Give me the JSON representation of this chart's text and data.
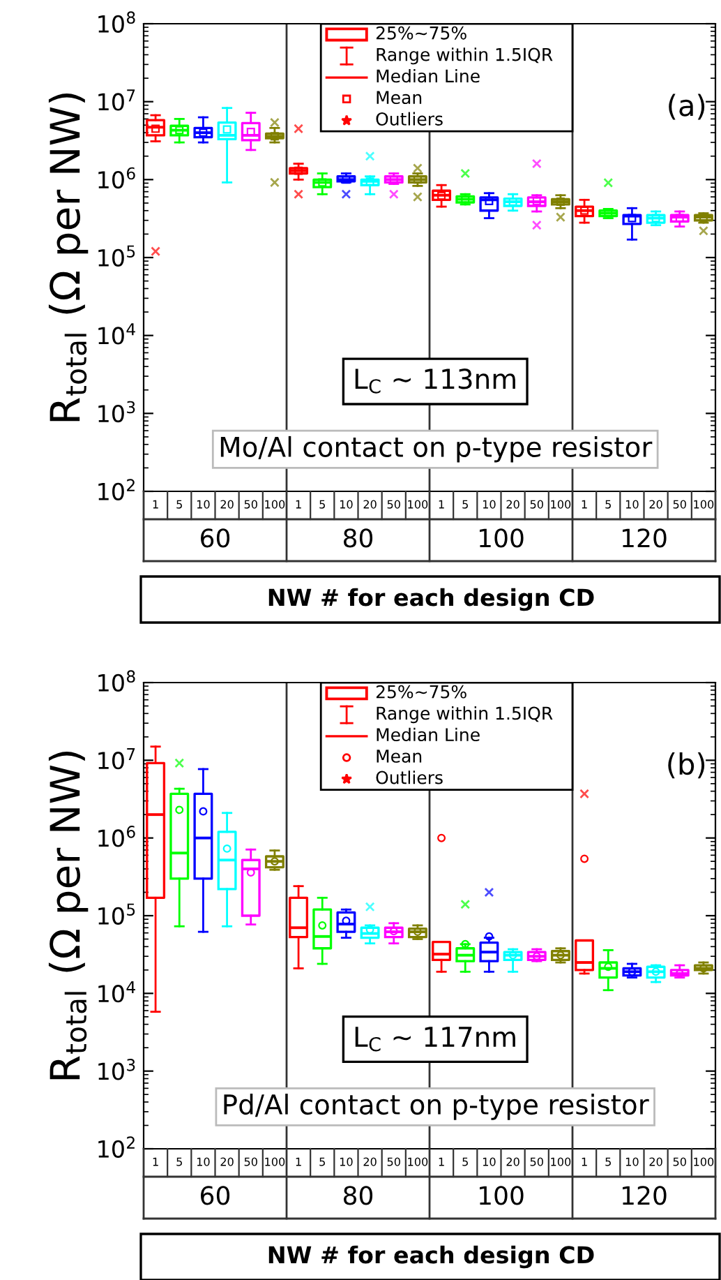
{
  "chart_data": [
    {
      "type": "box",
      "ylabel": "R$_{total}$ (Ω per NW)",
      "xlabel": "NW # for each design CD",
      "log": true,
      "ylim": [
        100,
        100000000
      ],
      "yticks": [
        {
          "value": 100,
          "label": "10$^{2}$"
        },
        {
          "value": 1000,
          "label": "10$^{3}$"
        },
        {
          "value": 10000,
          "label": "10$^{4}$"
        },
        {
          "value": 100000,
          "label": "10$^{5}$"
        },
        {
          "value": 1000000,
          "label": "10$^{6}$"
        },
        {
          "value": 10000000,
          "label": "10$^{7}$"
        },
        {
          "value": 100000000,
          "label": "10$^{8}$"
        }
      ],
      "marker": "square",
      "categories": [
        "1",
        "5",
        "10",
        "20",
        "50",
        "100",
        "1",
        "5",
        "10",
        "20",
        "50",
        "100",
        "1",
        "5",
        "10",
        "20",
        "50",
        "100",
        "1",
        "5",
        "10",
        "20",
        "50",
        "100"
      ],
      "colors": [
        "#ff0000",
        "#00ff00",
        "#0000ff",
        "#00ffff",
        "#ff00ff",
        "#808000",
        "#ff0000",
        "#00ff00",
        "#0000ff",
        "#00ffff",
        "#ff00ff",
        "#808000",
        "#ff0000",
        "#00ff00",
        "#0000ff",
        "#00ffff",
        "#ff00ff",
        "#808000",
        "#ff0000",
        "#00ff00",
        "#0000ff",
        "#00ffff",
        "#ff00ff",
        "#808000"
      ],
      "boxes": [
        {
          "low": 3100000,
          "q1": 3700000,
          "median": 4700000,
          "q3": 5800000,
          "high": 6700000,
          "mean": 4500000,
          "outliers": [
            120000
          ]
        },
        {
          "low": 3000000,
          "q1": 3700000,
          "median": 4300000,
          "q3": 4900000,
          "high": 6000000,
          "mean": 4300000
        },
        {
          "low": 3000000,
          "q1": 3500000,
          "median": 4000000,
          "q3": 4600000,
          "high": 6300000,
          "mean": 4000000
        },
        {
          "low": 920000,
          "q1": 3300000,
          "median": 3700000,
          "q3": 5400000,
          "high": 8300000,
          "mean": 4400000
        },
        {
          "low": 2400000,
          "q1": 3200000,
          "median": 3700000,
          "q3": 5300000,
          "high": 7200000,
          "mean": 4100000
        },
        {
          "low": 3000000,
          "q1": 3400000,
          "median": 3600000,
          "q3": 3900000,
          "high": 4600000,
          "mean": 3600000,
          "outliers": [
            5400000,
            920000
          ]
        },
        {
          "low": 1000000,
          "q1": 1200000,
          "median": 1300000,
          "q3": 1400000,
          "high": 1600000,
          "mean": 1300000,
          "outliers": [
            4500000,
            650000
          ]
        },
        {
          "low": 650000,
          "q1": 800000,
          "median": 920000,
          "q3": 1000000,
          "high": 1200000,
          "mean": 920000
        },
        {
          "low": 920000,
          "q1": 950000,
          "median": 1000000,
          "q3": 1100000,
          "high": 1200000,
          "mean": 1000000,
          "outliers": [
            650000
          ]
        },
        {
          "low": 650000,
          "q1": 850000,
          "median": 950000,
          "q3": 1000000,
          "high": 1100000,
          "mean": 940000,
          "outliers": [
            2000000
          ]
        },
        {
          "low": 880000,
          "q1": 920000,
          "median": 1000000,
          "q3": 1100000,
          "high": 1200000,
          "mean": 1000000,
          "outliers": [
            650000
          ]
        },
        {
          "low": 830000,
          "q1": 920000,
          "median": 1000000,
          "q3": 1100000,
          "high": 1200000,
          "mean": 1000000,
          "outliers": [
            1400000,
            600000
          ]
        },
        {
          "low": 450000,
          "q1": 550000,
          "median": 630000,
          "q3": 720000,
          "high": 850000,
          "mean": 620000
        },
        {
          "low": 480000,
          "q1": 510000,
          "median": 560000,
          "q3": 610000,
          "high": 650000,
          "mean": 560000,
          "outliers": [
            1200000
          ]
        },
        {
          "low": 320000,
          "q1": 400000,
          "median": 550000,
          "q3": 590000,
          "high": 670000,
          "mean": 530000
        },
        {
          "low": 400000,
          "q1": 460000,
          "median": 520000,
          "q3": 570000,
          "high": 650000,
          "mean": 520000
        },
        {
          "low": 390000,
          "q1": 460000,
          "median": 520000,
          "q3": 590000,
          "high": 630000,
          "mean": 530000,
          "outliers": [
            1600000,
            260000
          ]
        },
        {
          "low": 430000,
          "q1": 480000,
          "median": 520000,
          "q3": 560000,
          "high": 630000,
          "mean": 520000,
          "outliers": [
            330000
          ]
        },
        {
          "low": 280000,
          "q1": 340000,
          "median": 400000,
          "q3": 450000,
          "high": 550000,
          "mean": 400000
        },
        {
          "low": 320000,
          "q1": 340000,
          "median": 370000,
          "q3": 400000,
          "high": 420000,
          "mean": 370000,
          "outliers": [
            910000
          ]
        },
        {
          "low": 170000,
          "q1": 270000,
          "median": 340000,
          "q3": 350000,
          "high": 430000,
          "mean": 320000
        },
        {
          "low": 260000,
          "q1": 280000,
          "median": 320000,
          "q3": 350000,
          "high": 390000,
          "mean": 320000
        },
        {
          "low": 250000,
          "q1": 290000,
          "median": 330000,
          "q3": 350000,
          "high": 390000,
          "mean": 320000
        },
        {
          "low": 280000,
          "q1": 300000,
          "median": 330000,
          "q3": 350000,
          "high": 370000,
          "mean": 320000,
          "outliers": [
            220000
          ]
        }
      ],
      "annotations": [
        "(a)",
        "L$_{C}$ ~ 113nm",
        "Mo/Al contact on p-type resistor",
        "60",
        "80",
        "100",
        "120",
        "25%~75%",
        "Range within 1.5IQR",
        "Median Line",
        "Mean",
        "Outliers"
      ]
    },
    {
      "type": "box",
      "ylabel": "R$_{total}$ (Ω per NW)",
      "xlabel": "NW # for each design CD",
      "log": true,
      "ylim": [
        100,
        100000000
      ],
      "yticks": [
        {
          "value": 100,
          "label": "10$^{2}$"
        },
        {
          "value": 1000,
          "label": "10$^{3}$"
        },
        {
          "value": 10000,
          "label": "10$^{4}$"
        },
        {
          "value": 100000,
          "label": "10$^{5}$"
        },
        {
          "value": 1000000,
          "label": "10$^{6}$"
        },
        {
          "value": 10000000,
          "label": "10$^{7}$"
        },
        {
          "value": 100000000,
          "label": "10$^{8}$"
        }
      ],
      "marker": "circle",
      "categories": [
        "1",
        "5",
        "10",
        "20",
        "50",
        "100",
        "1",
        "5",
        "10",
        "20",
        "50",
        "100",
        "1",
        "5",
        "10",
        "20",
        "50",
        "100",
        "1",
        "5",
        "10",
        "20",
        "50",
        "100"
      ],
      "colors": [
        "#ff0000",
        "#00ff00",
        "#0000ff",
        "#00ffff",
        "#ff00ff",
        "#808000",
        "#ff0000",
        "#00ff00",
        "#0000ff",
        "#00ffff",
        "#ff00ff",
        "#808000",
        "#ff0000",
        "#00ff00",
        "#0000ff",
        "#00ffff",
        "#ff00ff",
        "#808000",
        "#ff0000",
        "#00ff00",
        "#0000ff",
        "#00ffff",
        "#ff00ff",
        "#808000"
      ],
      "boxes": [
        {
          "low": 5800,
          "q1": 170000,
          "median": 2000000,
          "q3": 9200000,
          "high": 15000000
        },
        {
          "low": 73000,
          "q1": 300000,
          "median": 640000,
          "q3": 3700000,
          "high": 4300000,
          "mean": 2300000,
          "outliers": [
            9200000
          ]
        },
        {
          "low": 62000,
          "q1": 300000,
          "median": 1000000,
          "q3": 3700000,
          "high": 7700000,
          "mean": 2200000
        },
        {
          "low": 73000,
          "q1": 220000,
          "median": 520000,
          "q3": 1200000,
          "high": 2100000,
          "mean": 730000
        },
        {
          "low": 77000,
          "q1": 100000,
          "median": 400000,
          "q3": 520000,
          "high": 710000,
          "mean": 360000
        },
        {
          "low": 390000,
          "q1": 420000,
          "median": 500000,
          "q3": 580000,
          "high": 690000,
          "mean": 500000
        },
        {
          "low": 21000,
          "q1": 53000,
          "median": 70000,
          "q3": 170000,
          "high": 240000
        },
        {
          "low": 24000,
          "q1": 38000,
          "median": 54000,
          "q3": 120000,
          "high": 170000,
          "mean": 75000
        },
        {
          "low": 52000,
          "q1": 62000,
          "median": 78000,
          "q3": 110000,
          "high": 120000,
          "mean": 86000
        },
        {
          "low": 44000,
          "q1": 52000,
          "median": 59000,
          "q3": 70000,
          "high": 75000,
          "mean": 66000,
          "outliers": [
            130000
          ]
        },
        {
          "low": 44000,
          "q1": 53000,
          "median": 62000,
          "q3": 70000,
          "high": 80000,
          "mean": 63000
        },
        {
          "low": 50000,
          "q1": 53000,
          "median": 62000,
          "q3": 68000,
          "high": 75000,
          "mean": 62000
        },
        {
          "low": 19000,
          "q1": 27000,
          "median": 32000,
          "q3": 46000,
          "high": 46000,
          "mean": 1000000
        },
        {
          "low": 19000,
          "q1": 26000,
          "median": 31000,
          "q3": 38000,
          "high": 43000,
          "mean": 43000,
          "outliers": [
            140000
          ]
        },
        {
          "low": 19000,
          "q1": 26000,
          "median": 34000,
          "q3": 45000,
          "high": 52000,
          "mean": 54000,
          "outliers": [
            200000
          ]
        },
        {
          "low": 19000,
          "q1": 27000,
          "median": 31000,
          "q3": 34000,
          "high": 37000,
          "mean": 31000
        },
        {
          "low": 26000,
          "q1": 27000,
          "median": 30000,
          "q3": 34000,
          "high": 37000,
          "mean": 30000
        },
        {
          "low": 25000,
          "q1": 27000,
          "median": 31000,
          "q3": 35000,
          "high": 38000,
          "mean": 31000
        },
        {
          "low": 18000,
          "q1": 20000,
          "median": 25000,
          "q3": 48000,
          "high": 48000,
          "mean": 540000,
          "outliers": [
            3700000
          ]
        },
        {
          "low": 11000,
          "q1": 16000,
          "median": 21000,
          "q3": 25000,
          "high": 36000,
          "mean": 22000
        },
        {
          "low": 16000,
          "q1": 17000,
          "median": 19000,
          "q3": 21000,
          "high": 24000,
          "mean": 19000
        },
        {
          "low": 14000,
          "q1": 16000,
          "median": 19000,
          "q3": 22000,
          "high": 23000,
          "mean": 19000
        },
        {
          "low": 16000,
          "q1": 17000,
          "median": 18000,
          "q3": 20000,
          "high": 23000,
          "mean": 18000
        },
        {
          "low": 18000,
          "q1": 20000,
          "median": 21000,
          "q3": 23000,
          "high": 25000,
          "mean": 21000
        }
      ],
      "annotations": [
        "(b)",
        "L$_{C}$ ~ 117nm",
        "Pd/Al contact on p-type resistor",
        "60",
        "80",
        "100",
        "120",
        "25%~75%",
        "Range within 1.5IQR",
        "Median Line",
        "Mean",
        "Outliers"
      ]
    }
  ]
}
